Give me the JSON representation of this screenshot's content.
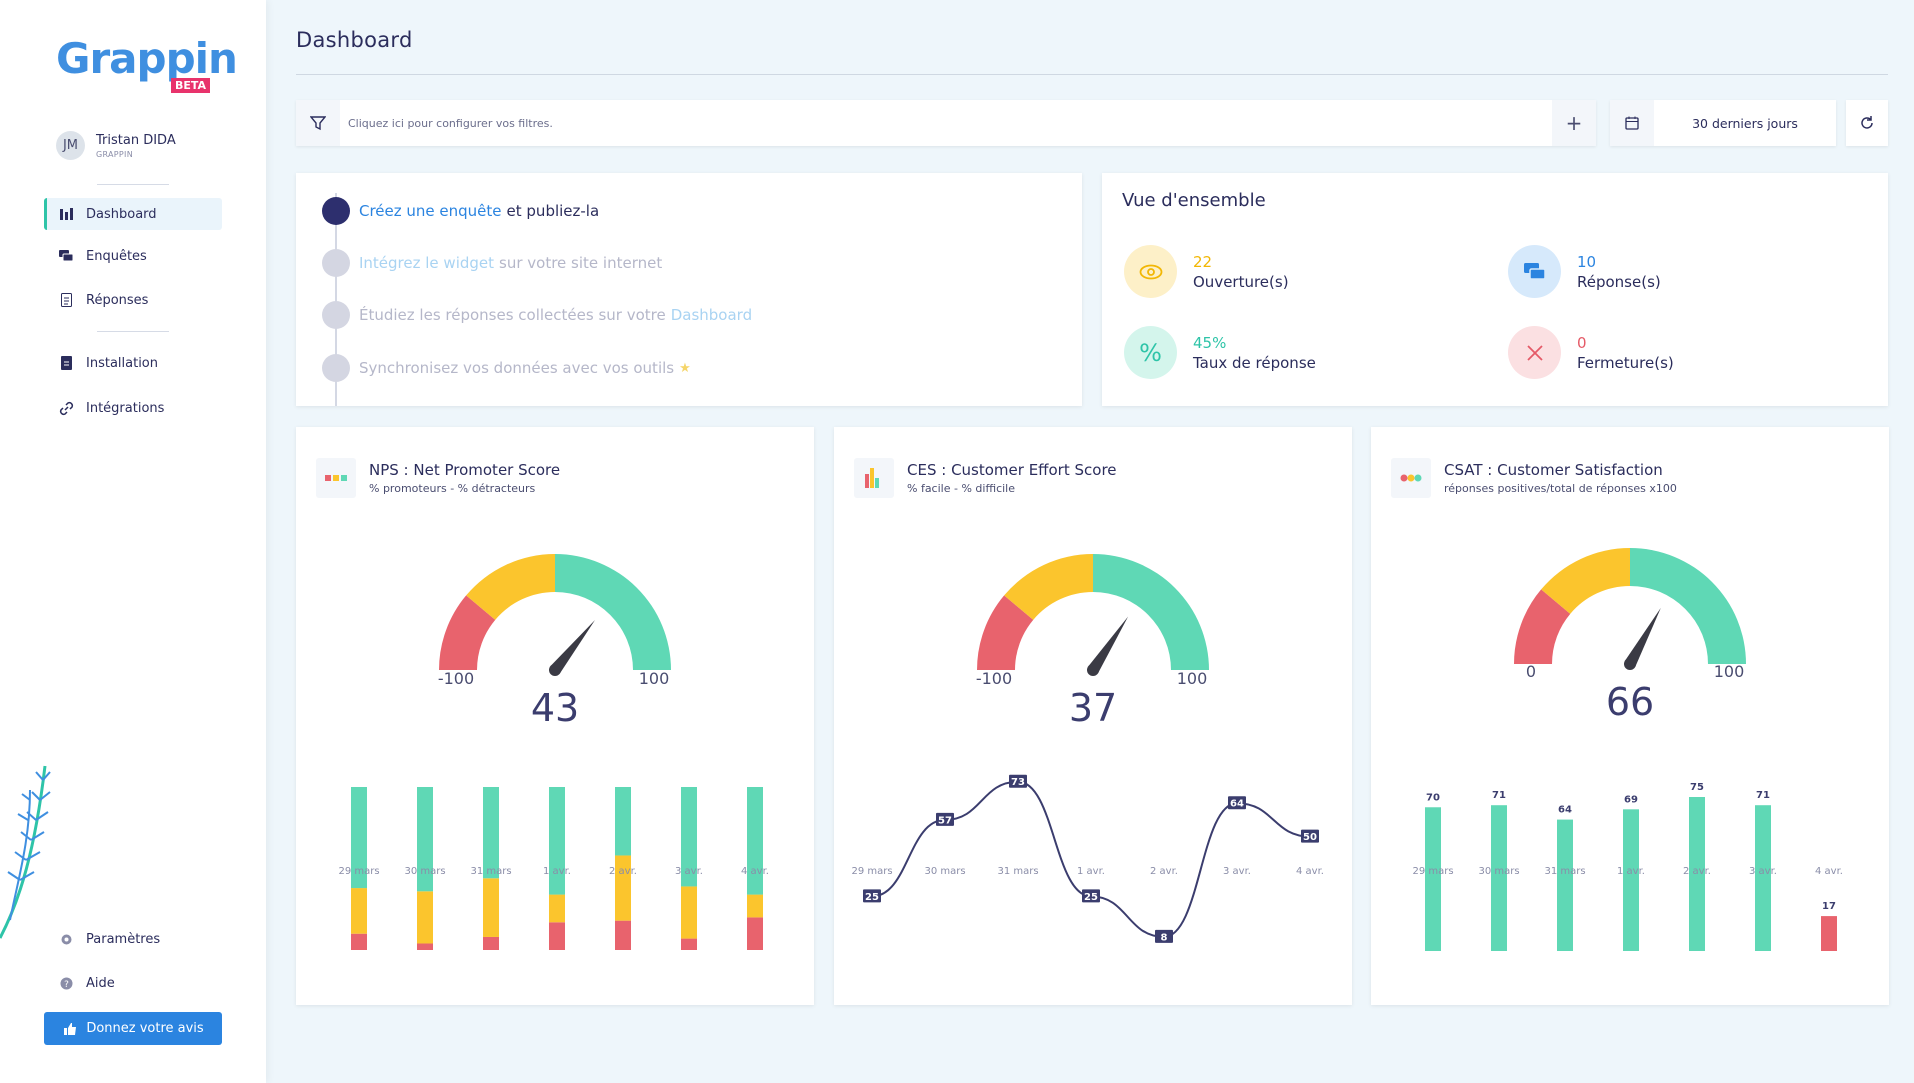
{
  "app": {
    "logo_text": "Grappin",
    "logo_badge": "BETA"
  },
  "user": {
    "initials": "JM",
    "name": "Tristan DIDA",
    "org": "GRAPPIN"
  },
  "nav": {
    "dashboard": "Dashboard",
    "enquetes": "Enquêtes",
    "reponses": "Réponses",
    "installation": "Installation",
    "integrations": "Intégrations",
    "parametres": "Paramètres",
    "aide": "Aide",
    "feedback": "Donnez votre avis"
  },
  "page": {
    "title": "Dashboard"
  },
  "filters": {
    "placeholder": "Cliquez ici pour configurer vos filtres.",
    "add": "+",
    "period": "30 derniers jours"
  },
  "steps": [
    {
      "link": "Créez une enquête",
      "text": "et publiez-la",
      "suffix": ""
    },
    {
      "link": "Intégrez le widget",
      "text": "sur votre site internet",
      "suffix": ""
    },
    {
      "link": "",
      "text": "Étudiez les réponses collectées sur votre",
      "suffix": "Dashboard"
    },
    {
      "link": "",
      "text": "Synchronisez vos données avec vos outils",
      "suffix": ""
    }
  ],
  "overview": {
    "title": "Vue d'ensemble",
    "items": [
      {
        "value": "22",
        "label": "Ouverture(s)",
        "color": "#f2b705"
      },
      {
        "value": "10",
        "label": "Réponse(s)",
        "color": "#2b84e0"
      },
      {
        "value": "45%",
        "label": "Taux de réponse",
        "color": "#2ec4a8"
      },
      {
        "value": "0",
        "label": "Fermeture(s)",
        "color": "#e55a67"
      }
    ]
  },
  "colors": {
    "red": "#e8636d",
    "yellow": "#fbc52d",
    "green": "#5fd8b5",
    "navy": "#3b3d6e"
  },
  "chart_data": [
    {
      "type": "bar",
      "stacked": true,
      "title": "NPS : Net Promoter Score",
      "subtitle": "% promoteurs - % détracteurs",
      "gauge": {
        "value": 43,
        "min_label": "-100",
        "max_label": "100",
        "min": -100,
        "max": 100
      },
      "categories": [
        "29 mars",
        "30 mars",
        "31 mars",
        "1 avr.",
        "2 avr.",
        "3 avr.",
        "4 avr."
      ],
      "series": [
        {
          "color": "#e8636d",
          "values": [
            10,
            4,
            8,
            17,
            18,
            7,
            20
          ]
        },
        {
          "color": "#fbc52d",
          "values": [
            28,
            32,
            36,
            17,
            40,
            32,
            14
          ]
        },
        {
          "color": "#5fd8b5",
          "values": [
            62,
            64,
            56,
            66,
            42,
            61,
            66
          ]
        }
      ]
    },
    {
      "type": "line",
      "title": "CES : Customer Effort Score",
      "subtitle": "% facile - % difficile",
      "gauge": {
        "value": 37,
        "min_label": "-100",
        "max_label": "100",
        "min": -100,
        "max": 100
      },
      "categories": [
        "29 mars",
        "30 mars",
        "31 mars",
        "1 avr.",
        "2 avr.",
        "3 avr.",
        "4 avr."
      ],
      "values": [
        25,
        57,
        73,
        25,
        8,
        64,
        50
      ],
      "ylim": [
        0,
        80
      ]
    },
    {
      "type": "bar",
      "title": "CSAT : Customer Satisfaction",
      "subtitle": "réponses positives/total de réponses x100",
      "gauge": {
        "value": 66,
        "min_label": "0",
        "max_label": "100",
        "min": 0,
        "max": 100
      },
      "categories": [
        "29 mars",
        "30 mars",
        "31 mars",
        "1 avr.",
        "2 avr.",
        "3 avr.",
        "4 avr."
      ],
      "values": [
        70,
        71,
        64,
        69,
        75,
        71,
        17
      ],
      "ylim": [
        0,
        85
      ]
    }
  ]
}
